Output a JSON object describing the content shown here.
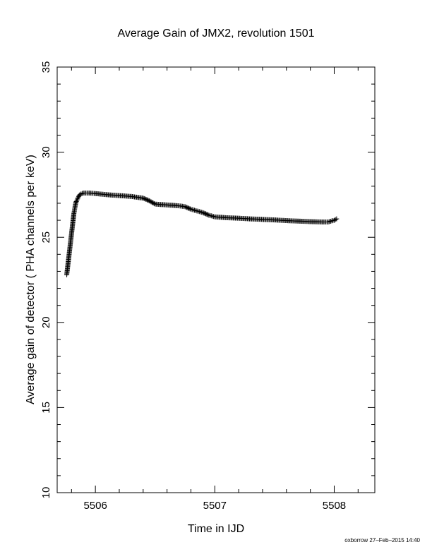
{
  "chart_data": {
    "type": "scatter",
    "title": "Average Gain of JMX2, revolution 1501",
    "xlabel": "Time in IJD",
    "ylabel": "Average gain of detector ( PHA channels per keV)",
    "xlim": [
      5505.68,
      5508.34
    ],
    "ylim": [
      10,
      35
    ],
    "xticks": [
      5506,
      5507,
      5508
    ],
    "yticks": [
      10,
      15,
      20,
      25,
      30,
      35
    ],
    "grid": false,
    "marker": "plus",
    "series": [
      {
        "points": [
          [
            5505.76,
            22.8
          ],
          [
            5505.765,
            23.1
          ],
          [
            5505.77,
            23.4
          ],
          [
            5505.775,
            23.7
          ],
          [
            5505.78,
            24.0
          ],
          [
            5505.785,
            24.3
          ],
          [
            5505.79,
            24.6
          ],
          [
            5505.795,
            24.9
          ],
          [
            5505.8,
            25.2
          ],
          [
            5505.805,
            25.5
          ],
          [
            5505.81,
            25.8
          ],
          [
            5505.815,
            26.1
          ],
          [
            5505.82,
            26.4
          ],
          [
            5505.825,
            26.6
          ],
          [
            5505.83,
            26.8
          ],
          [
            5505.835,
            27.0
          ],
          [
            5505.84,
            27.1
          ],
          [
            5505.85,
            27.25
          ],
          [
            5505.86,
            27.4
          ],
          [
            5505.87,
            27.5
          ],
          [
            5505.88,
            27.55
          ],
          [
            5505.89,
            27.58
          ],
          [
            5505.9,
            27.6
          ],
          [
            5505.95,
            27.6
          ],
          [
            5506.0,
            27.57
          ],
          [
            5506.1,
            27.5
          ],
          [
            5506.2,
            27.45
          ],
          [
            5506.3,
            27.4
          ],
          [
            5506.4,
            27.3
          ],
          [
            5506.45,
            27.15
          ],
          [
            5506.5,
            26.95
          ],
          [
            5506.6,
            26.9
          ],
          [
            5506.7,
            26.85
          ],
          [
            5506.75,
            26.8
          ],
          [
            5506.8,
            26.65
          ],
          [
            5506.85,
            26.55
          ],
          [
            5506.9,
            26.45
          ],
          [
            5506.95,
            26.3
          ],
          [
            5507.0,
            26.2
          ],
          [
            5507.1,
            26.15
          ],
          [
            5507.2,
            26.12
          ],
          [
            5507.3,
            26.08
          ],
          [
            5507.4,
            26.05
          ],
          [
            5507.5,
            26.02
          ],
          [
            5507.6,
            25.98
          ],
          [
            5507.7,
            25.95
          ],
          [
            5507.8,
            25.92
          ],
          [
            5507.9,
            25.9
          ],
          [
            5507.95,
            25.9
          ],
          [
            5508.0,
            26.0
          ],
          [
            5508.02,
            26.08
          ]
        ]
      }
    ]
  },
  "footer": "oxborrow 27–Feb–2015 14:40"
}
